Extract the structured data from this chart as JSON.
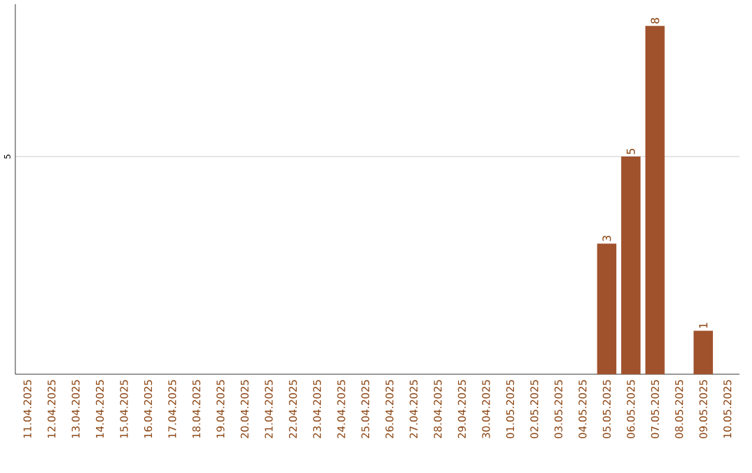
{
  "chart_data": {
    "type": "bar",
    "categories": [
      "11.04.2025",
      "12.04.2025",
      "13.04.2025",
      "14.04.2025",
      "15.04.2025",
      "16.04.2025",
      "17.04.2025",
      "18.04.2025",
      "19.04.2025",
      "20.04.2025",
      "21.04.2025",
      "22.04.2025",
      "23.04.2025",
      "24.04.2025",
      "25.04.2025",
      "26.04.2025",
      "27.04.2025",
      "28.04.2025",
      "29.04.2025",
      "30.04.2025",
      "01.05.2025",
      "02.05.2025",
      "03.05.2025",
      "04.05.2025",
      "05.05.2025",
      "06.05.2025",
      "07.05.2025",
      "08.05.2025",
      "09.05.2025",
      "10.05.2025"
    ],
    "values": [
      null,
      null,
      null,
      null,
      null,
      null,
      null,
      null,
      null,
      null,
      null,
      null,
      null,
      null,
      null,
      null,
      null,
      null,
      null,
      null,
      null,
      null,
      null,
      null,
      3,
      5,
      8,
      null,
      1,
      null
    ],
    "color": "#a0522d",
    "ylim": [
      0,
      8.5
    ],
    "yticks": [
      5
    ],
    "grid": "y",
    "data_labels": true
  }
}
